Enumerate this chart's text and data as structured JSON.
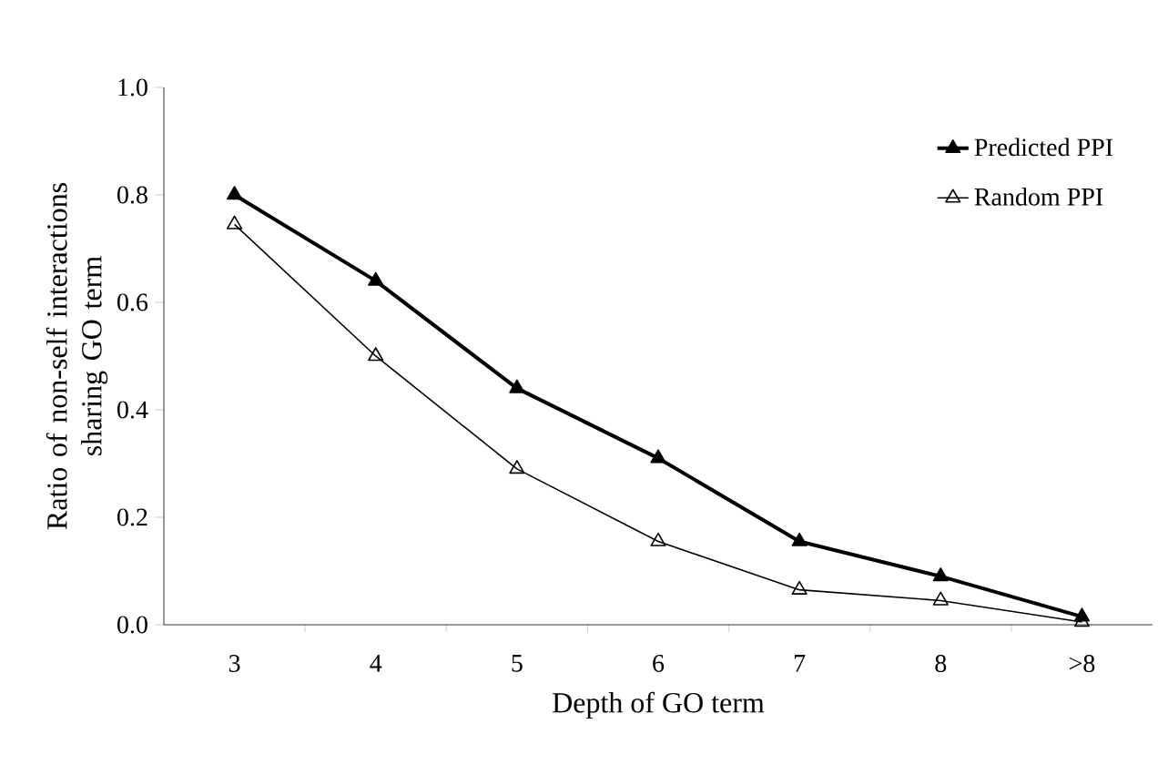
{
  "chart_data": {
    "type": "line",
    "xlabel": "Depth of GO term",
    "ylabel": "Ratio of non-self interactions sharing GO term",
    "categories": [
      "3",
      "4",
      "5",
      "6",
      "7",
      "8",
      ">8"
    ],
    "ylim": [
      0,
      1.0
    ],
    "yticks": [
      {
        "value": 0,
        "label": "0.0"
      },
      {
        "value": 0.2,
        "label": "0.2"
      },
      {
        "value": 0.4,
        "label": "0.4"
      },
      {
        "value": 0.6,
        "label": "0.6"
      },
      {
        "value": 0.8,
        "label": "0.8"
      },
      {
        "value": 1.0,
        "label": "1.0"
      }
    ],
    "legend": "top right",
    "marker": "triangle",
    "grid": false,
    "series": [
      {
        "name": "Predicted PPI",
        "color": "#000000",
        "values": [
          0.8,
          0.64,
          0.44,
          0.31,
          0.155,
          0.09,
          0.015
        ]
      },
      {
        "name": "Random PPI",
        "color": "#000000",
        "values": [
          0.745,
          0.5,
          0.29,
          0.155,
          0.065,
          0.045,
          0.005
        ]
      }
    ]
  }
}
